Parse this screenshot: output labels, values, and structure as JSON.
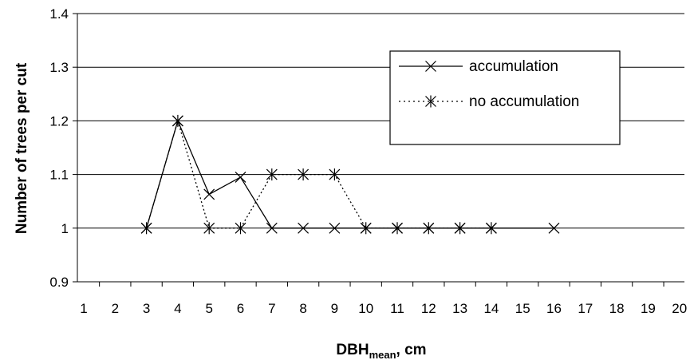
{
  "chart_data": {
    "type": "line",
    "title": "",
    "xlabel_main": "DBH",
    "xlabel_sub": "mean",
    "xlabel_suffix": ", cm",
    "ylabel": "Number of trees per cut",
    "xlim": [
      1,
      20
    ],
    "ylim": [
      0.9,
      1.4
    ],
    "x_ticks": [
      1,
      2,
      3,
      4,
      5,
      6,
      7,
      8,
      9,
      10,
      11,
      12,
      13,
      14,
      15,
      16,
      17,
      18,
      19,
      20
    ],
    "y_ticks": [
      0.9,
      1,
      1.1,
      1.2,
      1.3,
      1.4
    ],
    "y_tick_labels": [
      "0.9",
      "1",
      "1.1",
      "1.2",
      "1.3",
      "1.4"
    ],
    "grid": "horizontal",
    "legend_position": "top-right",
    "series": [
      {
        "name": "accumulation",
        "marker": "x",
        "line_style": "solid",
        "color": "#000000",
        "points": [
          [
            3,
            1.0
          ],
          [
            4,
            1.2
          ],
          [
            5,
            1.063
          ],
          [
            6,
            1.095
          ],
          [
            7,
            1.0
          ],
          [
            8,
            1.0
          ],
          [
            9,
            1.0
          ],
          [
            10,
            1.0
          ],
          [
            11,
            1.0
          ],
          [
            12,
            1.0
          ],
          [
            13,
            1.0
          ],
          [
            14,
            1.0
          ],
          [
            16,
            1.0
          ]
        ]
      },
      {
        "name": "no accumulation",
        "marker": "asterisk",
        "line_style": "dotted",
        "color": "#000000",
        "points": [
          [
            3,
            1.0
          ],
          [
            4,
            1.2
          ],
          [
            5,
            1.0
          ],
          [
            6,
            1.0
          ],
          [
            7,
            1.1
          ],
          [
            8,
            1.1
          ],
          [
            9,
            1.1
          ],
          [
            10,
            1.0
          ],
          [
            11,
            1.0
          ],
          [
            12,
            1.0
          ],
          [
            13,
            1.0
          ],
          [
            14,
            1.0
          ]
        ]
      }
    ]
  }
}
